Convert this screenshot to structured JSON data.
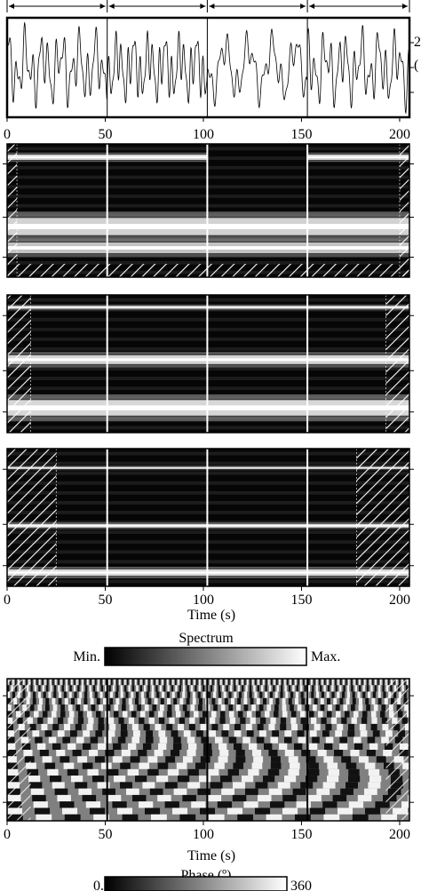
{
  "figure": {
    "signal_axis_ticks": [
      "0",
      "50",
      "100",
      "150",
      "200"
    ],
    "time_axis_label": "Time (s)",
    "side_label_fragments": [
      "2",
      "("
    ]
  },
  "colorbar_spectrum": {
    "title": "Spectrum",
    "min_label": "Min.",
    "max_label": "Max."
  },
  "colorbar_phase": {
    "title": "Phase (º)",
    "min_label": "0.",
    "max_label": "360"
  },
  "chart_data": [
    {
      "type": "line",
      "panel": "signal",
      "x_range": [
        0,
        205
      ],
      "segment_boundaries": [
        0,
        51,
        102,
        153,
        205
      ],
      "segment_marker_labels": [
        "",
        "",
        "",
        ""
      ],
      "xticks": [
        0,
        50,
        100,
        150,
        200
      ],
      "segments": [
        {
          "from": 0,
          "to": 51,
          "components": [
            {
              "period": 4.0,
              "amp": 0.55
            },
            {
              "period": 9.0,
              "amp": 0.45
            },
            {
              "period": 2.3,
              "amp": 0.3
            }
          ]
        },
        {
          "from": 51,
          "to": 102,
          "components": [
            {
              "period": 3.2,
              "amp": 0.5
            },
            {
              "period": 8.0,
              "amp": 0.45
            },
            {
              "period": 2.0,
              "amp": 0.3
            }
          ]
        },
        {
          "from": 102,
          "to": 153,
          "components": [
            {
              "period": 12.0,
              "amp": 0.6
            },
            {
              "period": 4.5,
              "amp": 0.35
            },
            {
              "period": 2.5,
              "amp": 0.2
            }
          ]
        },
        {
          "from": 153,
          "to": 205,
          "components": [
            {
              "period": 4.0,
              "amp": 0.55
            },
            {
              "period": 9.0,
              "amp": 0.45
            },
            {
              "period": 2.3,
              "amp": 0.3
            }
          ]
        }
      ]
    },
    {
      "type": "heatmap",
      "panel": "spectrum-1",
      "x_range": [
        0,
        205
      ],
      "y_range": [
        0,
        1
      ],
      "bands": [
        {
          "y": 0.1,
          "width": 0.025,
          "from": 0,
          "to": 102,
          "strength": 0.95
        },
        {
          "y": 0.1,
          "width": 0.025,
          "from": 153,
          "to": 205,
          "strength": 0.95
        },
        {
          "y": 0.62,
          "width": 0.08,
          "from": 0,
          "to": 205,
          "strength": 0.9
        },
        {
          "y": 0.78,
          "width": 0.05,
          "from": 0,
          "to": 205,
          "strength": 0.75
        }
      ],
      "white_lines_x": [
        51,
        102,
        153
      ],
      "hatch_left_x": 5,
      "hatch_right_x": 200,
      "hatch_bottom_y": 0.9
    },
    {
      "type": "heatmap",
      "panel": "spectrum-2",
      "x_range": [
        0,
        205
      ],
      "y_range": [
        0,
        1
      ],
      "bands": [
        {
          "y": 0.09,
          "width": 0.015,
          "from": 0,
          "to": 205,
          "strength": 0.95
        },
        {
          "y": 0.47,
          "width": 0.04,
          "from": 0,
          "to": 205,
          "strength": 0.9
        },
        {
          "y": 0.82,
          "width": 0.07,
          "from": 0,
          "to": 205,
          "strength": 0.95
        }
      ],
      "white_lines_x": [
        51,
        102,
        153
      ],
      "hatch_left_x": 12,
      "hatch_right_x": 193
    },
    {
      "type": "heatmap",
      "panel": "spectrum-3",
      "x_range": [
        0,
        205
      ],
      "y_range": [
        0,
        1
      ],
      "bands": [
        {
          "y": 0.14,
          "width": 0.012,
          "from": 0,
          "to": 205,
          "strength": 0.7
        },
        {
          "y": 0.56,
          "width": 0.018,
          "from": 0,
          "to": 205,
          "strength": 0.95
        },
        {
          "y": 0.9,
          "width": 0.03,
          "from": 0,
          "to": 205,
          "strength": 0.95
        }
      ],
      "white_lines_x": [
        51,
        102,
        153
      ],
      "hatch_left_x": 25,
      "hatch_right_x": 178
    },
    {
      "type": "heatmap",
      "panel": "phase",
      "x_range": [
        0,
        205
      ],
      "y_range": [
        0,
        1
      ],
      "black_lines_x": [
        51,
        102,
        153
      ],
      "hatch_left_x": 12,
      "hatch_right_x": 193
    }
  ]
}
